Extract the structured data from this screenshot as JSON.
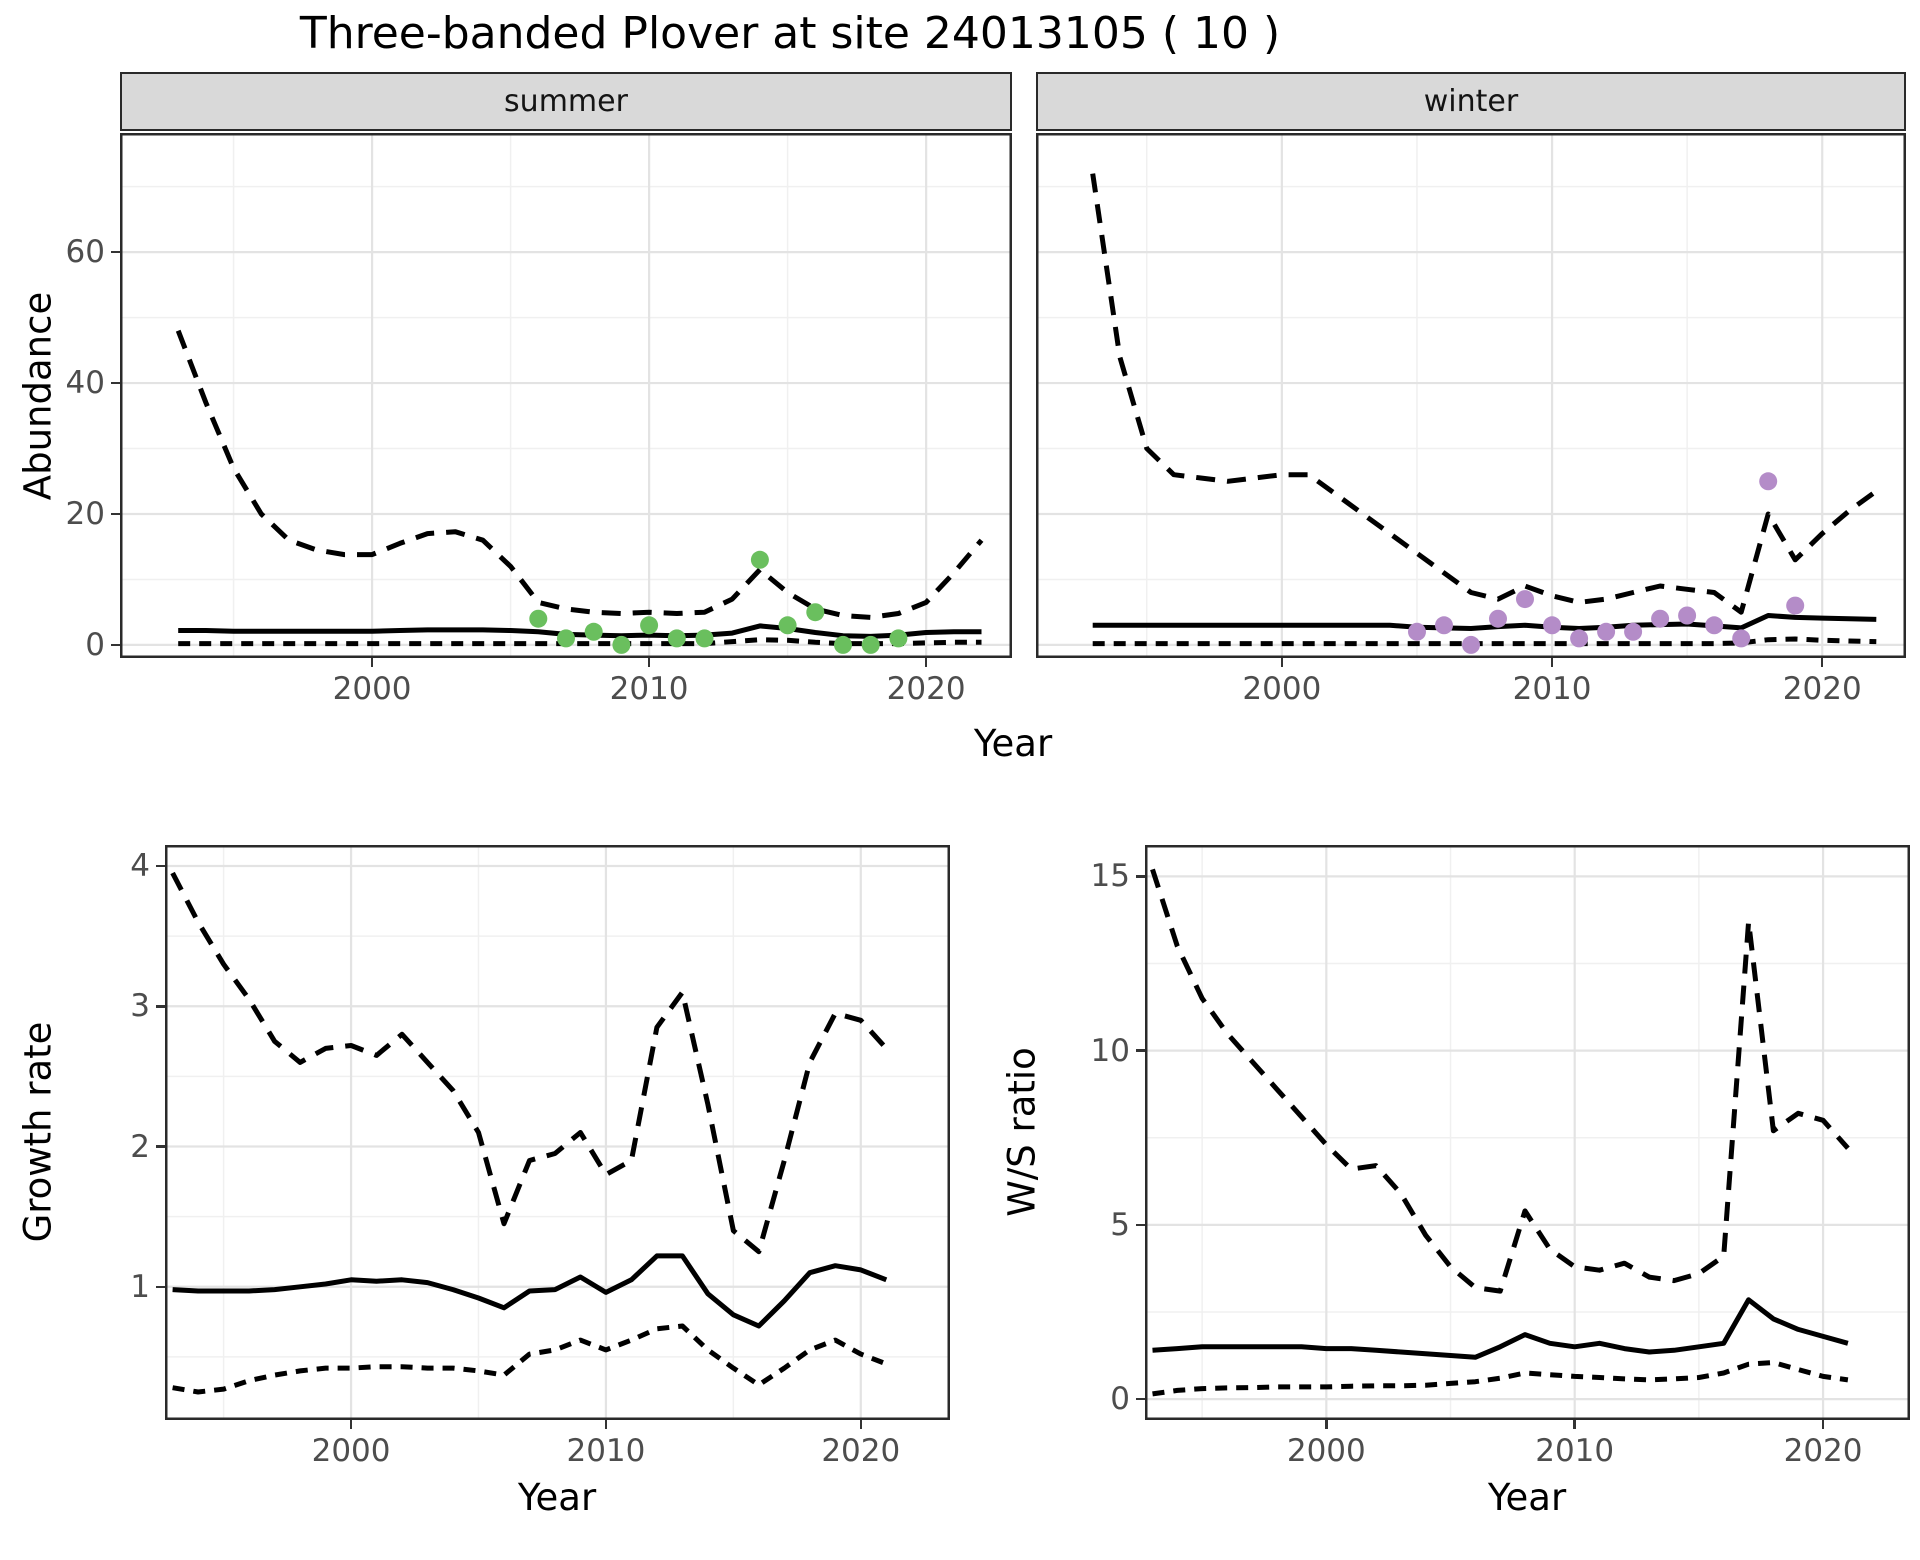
{
  "title": "Three-banded Plover at site 24013105 ( 10 )",
  "colors": {
    "summer_points": "#6abf5e",
    "winter_points": "#b48cc8",
    "line": "#000000",
    "grid_major": "#e3e3e3",
    "grid_minor": "#f0f0f0",
    "panel_border": "#2a2a2a",
    "strip_bg": "#d9d9d9",
    "tick_text": "#4d4d4d"
  },
  "chart_data": [
    {
      "id": "summer",
      "type": "line",
      "facet_label": "summer",
      "xlabel": "Year",
      "ylabel": "Abundance",
      "xlim": [
        1990.9,
        2023.1
      ],
      "ylim": [
        -2.0,
        78.2
      ],
      "xticks": [
        2000,
        2010,
        2020
      ],
      "xminor": [
        1995,
        2005,
        2015
      ],
      "yticks": [
        0,
        20,
        40,
        60
      ],
      "yminor": [
        10,
        30,
        50,
        70
      ],
      "x": [
        1993,
        1994,
        1995,
        1996,
        1997,
        1998,
        1999,
        2000,
        2001,
        2002,
        2003,
        2004,
        2005,
        2006,
        2007,
        2008,
        2009,
        2010,
        2011,
        2012,
        2013,
        2014,
        2015,
        2016,
        2017,
        2018,
        2019,
        2020,
        2021,
        2022
      ],
      "series": [
        {
          "name": "upper_ci",
          "linetype": "dashed",
          "values": [
            48,
            37,
            27,
            20,
            16,
            14.5,
            13.8,
            13.8,
            15.5,
            17,
            17.3,
            16,
            12,
            6.5,
            5.5,
            5,
            4.8,
            5,
            4.8,
            5,
            7,
            11.5,
            8,
            5.5,
            4.5,
            4.2,
            4.8,
            6.5,
            11,
            16
          ]
        },
        {
          "name": "mean",
          "linetype": "solid",
          "values": [
            2.2,
            2.2,
            2.1,
            2.1,
            2.1,
            2.1,
            2.1,
            2.1,
            2.2,
            2.3,
            2.3,
            2.3,
            2.2,
            2.0,
            1.6,
            1.5,
            1.4,
            1.5,
            1.4,
            1.5,
            1.8,
            2.9,
            2.5,
            1.9,
            1.4,
            1.3,
            1.5,
            1.9,
            2.0,
            2.0
          ]
        },
        {
          "name": "lower_ci",
          "linetype": "dashed",
          "values": [
            0.2,
            0.2,
            0.2,
            0.2,
            0.2,
            0.2,
            0.2,
            0.2,
            0.2,
            0.2,
            0.2,
            0.2,
            0.2,
            0.2,
            0.2,
            0.2,
            0.2,
            0.2,
            0.2,
            0.2,
            0.5,
            0.8,
            0.7,
            0.4,
            0.2,
            0.2,
            0.2,
            0.3,
            0.4,
            0.4
          ]
        }
      ],
      "points": {
        "name": "observed_summer_counts",
        "color": "#6abf5e",
        "xy": [
          [
            2006,
            4
          ],
          [
            2007,
            1
          ],
          [
            2008,
            2
          ],
          [
            2009,
            0
          ],
          [
            2010,
            3
          ],
          [
            2011,
            1
          ],
          [
            2012,
            1
          ],
          [
            2014,
            13
          ],
          [
            2015,
            3
          ],
          [
            2016,
            5
          ],
          [
            2017,
            0
          ],
          [
            2018,
            0
          ],
          [
            2019,
            1
          ]
        ]
      }
    },
    {
      "id": "winter",
      "type": "line",
      "facet_label": "winter",
      "xlabel": "Year",
      "ylabel": "Abundance",
      "xlim": [
        1990.9,
        2023.1
      ],
      "ylim": [
        -2.0,
        78.2
      ],
      "xticks": [
        2000,
        2010,
        2020
      ],
      "xminor": [
        1995,
        2005,
        2015
      ],
      "yticks": [
        0,
        20,
        40,
        60
      ],
      "yminor": [
        10,
        30,
        50,
        70
      ],
      "x": [
        1993,
        1994,
        1995,
        1996,
        1997,
        1998,
        1999,
        2000,
        2001,
        2002,
        2003,
        2004,
        2005,
        2006,
        2007,
        2008,
        2009,
        2010,
        2011,
        2012,
        2013,
        2014,
        2015,
        2016,
        2017,
        2018,
        2019,
        2020,
        2021,
        2022
      ],
      "series": [
        {
          "name": "upper_ci",
          "linetype": "dashed",
          "values": [
            72,
            44,
            30,
            26,
            25.5,
            25,
            25.5,
            26,
            26,
            23,
            20,
            17,
            14,
            11,
            8,
            7,
            9,
            7.5,
            6.5,
            7,
            8,
            9,
            8.5,
            8,
            5,
            20,
            13,
            17,
            20.5,
            23.5
          ]
        },
        {
          "name": "mean",
          "linetype": "solid",
          "values": [
            3.0,
            3.0,
            3.0,
            3.0,
            3.0,
            3.0,
            3.0,
            3.0,
            3.0,
            3.0,
            3.0,
            3.0,
            2.7,
            2.6,
            2.5,
            2.8,
            3.0,
            2.7,
            2.5,
            2.7,
            3.0,
            3.1,
            3.2,
            2.9,
            2.6,
            4.5,
            4.2,
            4.1,
            4.0,
            3.9
          ]
        },
        {
          "name": "lower_ci",
          "linetype": "dashed",
          "values": [
            0.2,
            0.2,
            0.2,
            0.2,
            0.2,
            0.2,
            0.2,
            0.2,
            0.2,
            0.2,
            0.2,
            0.2,
            0.2,
            0.2,
            0.2,
            0.2,
            0.2,
            0.2,
            0.2,
            0.2,
            0.2,
            0.2,
            0.2,
            0.2,
            0.3,
            0.8,
            0.9,
            0.7,
            0.6,
            0.5
          ]
        }
      ],
      "points": {
        "name": "observed_winter_counts",
        "color": "#b48cc8",
        "xy": [
          [
            2005,
            2
          ],
          [
            2006,
            3
          ],
          [
            2007,
            0
          ],
          [
            2008,
            4
          ],
          [
            2009,
            7
          ],
          [
            2010,
            3
          ],
          [
            2011,
            1
          ],
          [
            2012,
            2
          ],
          [
            2013,
            2
          ],
          [
            2014,
            4
          ],
          [
            2015,
            4.5
          ],
          [
            2016,
            3
          ],
          [
            2017,
            1
          ],
          [
            2018,
            25
          ],
          [
            2019,
            6
          ]
        ]
      }
    },
    {
      "id": "growth",
      "type": "line",
      "facet_label": "",
      "xlabel": "Year",
      "ylabel": "Growth rate",
      "xlim": [
        1992.7,
        2023.5
      ],
      "ylim": [
        0.05,
        4.15
      ],
      "xticks": [
        2000,
        2010,
        2020
      ],
      "xminor": [
        1995,
        2005,
        2015
      ],
      "yticks": [
        1,
        2,
        3,
        4
      ],
      "yminor": [
        0.5,
        1.5,
        2.5,
        3.5
      ],
      "x": [
        1993,
        1994,
        1995,
        1996,
        1997,
        1998,
        1999,
        2000,
        2001,
        2002,
        2003,
        2004,
        2005,
        2006,
        2007,
        2008,
        2009,
        2010,
        2011,
        2012,
        2013,
        2014,
        2015,
        2016,
        2017,
        2018,
        2019,
        2020,
        2021
      ],
      "series": [
        {
          "name": "upper_ci",
          "linetype": "dashed",
          "values": [
            3.95,
            3.6,
            3.3,
            3.05,
            2.75,
            2.6,
            2.7,
            2.72,
            2.65,
            2.8,
            2.6,
            2.4,
            2.1,
            1.45,
            1.9,
            1.95,
            2.1,
            1.8,
            1.9,
            2.85,
            3.1,
            2.3,
            1.4,
            1.25,
            1.9,
            2.6,
            2.95,
            2.9,
            2.7
          ]
        },
        {
          "name": "mean",
          "linetype": "solid",
          "values": [
            0.98,
            0.97,
            0.97,
            0.97,
            0.98,
            1.0,
            1.02,
            1.05,
            1.04,
            1.05,
            1.03,
            0.98,
            0.92,
            0.85,
            0.97,
            0.98,
            1.07,
            0.96,
            1.05,
            1.22,
            1.22,
            0.95,
            0.8,
            0.72,
            0.9,
            1.1,
            1.15,
            1.12,
            1.05
          ]
        },
        {
          "name": "lower_ci",
          "linetype": "dashed",
          "values": [
            0.28,
            0.25,
            0.27,
            0.33,
            0.37,
            0.4,
            0.42,
            0.42,
            0.43,
            0.43,
            0.42,
            0.42,
            0.4,
            0.37,
            0.52,
            0.55,
            0.62,
            0.55,
            0.62,
            0.7,
            0.72,
            0.55,
            0.42,
            0.3,
            0.42,
            0.55,
            0.62,
            0.52,
            0.45
          ]
        }
      ]
    },
    {
      "id": "ratio",
      "type": "line",
      "facet_label": "",
      "xlabel": "Year",
      "ylabel": "W/S ratio",
      "xlim": [
        1992.7,
        2023.5
      ],
      "ylim": [
        -0.6,
        15.9
      ],
      "xticks": [
        2000,
        2010,
        2020
      ],
      "xminor": [
        1995,
        2005,
        2015
      ],
      "yticks": [
        0,
        5,
        10,
        15
      ],
      "yminor": [
        2.5,
        7.5,
        12.5
      ],
      "x": [
        1993,
        1994,
        1995,
        1996,
        1997,
        1998,
        1999,
        2000,
        2001,
        2002,
        2003,
        2004,
        2005,
        2006,
        2007,
        2008,
        2009,
        2010,
        2011,
        2012,
        2013,
        2014,
        2015,
        2016,
        2017,
        2018,
        2019,
        2020,
        2021
      ],
      "series": [
        {
          "name": "upper_ci",
          "linetype": "dashed",
          "values": [
            15.2,
            13,
            11.5,
            10.5,
            9.7,
            8.9,
            8.1,
            7.3,
            6.6,
            6.7,
            5.9,
            4.7,
            3.8,
            3.2,
            3.1,
            5.4,
            4.3,
            3.8,
            3.7,
            3.9,
            3.5,
            3.4,
            3.6,
            4.1,
            13.7,
            7.7,
            8.2,
            8.0,
            7.2
          ]
        },
        {
          "name": "mean",
          "linetype": "solid",
          "values": [
            1.4,
            1.45,
            1.5,
            1.5,
            1.5,
            1.5,
            1.5,
            1.45,
            1.45,
            1.4,
            1.35,
            1.3,
            1.25,
            1.2,
            1.5,
            1.85,
            1.6,
            1.5,
            1.6,
            1.45,
            1.35,
            1.4,
            1.5,
            1.6,
            2.85,
            2.3,
            2.0,
            1.8,
            1.6
          ]
        },
        {
          "name": "lower_ci",
          "linetype": "dashed",
          "values": [
            0.15,
            0.25,
            0.3,
            0.32,
            0.33,
            0.35,
            0.35,
            0.35,
            0.37,
            0.38,
            0.38,
            0.4,
            0.45,
            0.5,
            0.6,
            0.75,
            0.7,
            0.65,
            0.62,
            0.58,
            0.55,
            0.58,
            0.62,
            0.75,
            1.0,
            1.05,
            0.85,
            0.65,
            0.55
          ]
        }
      ]
    }
  ]
}
